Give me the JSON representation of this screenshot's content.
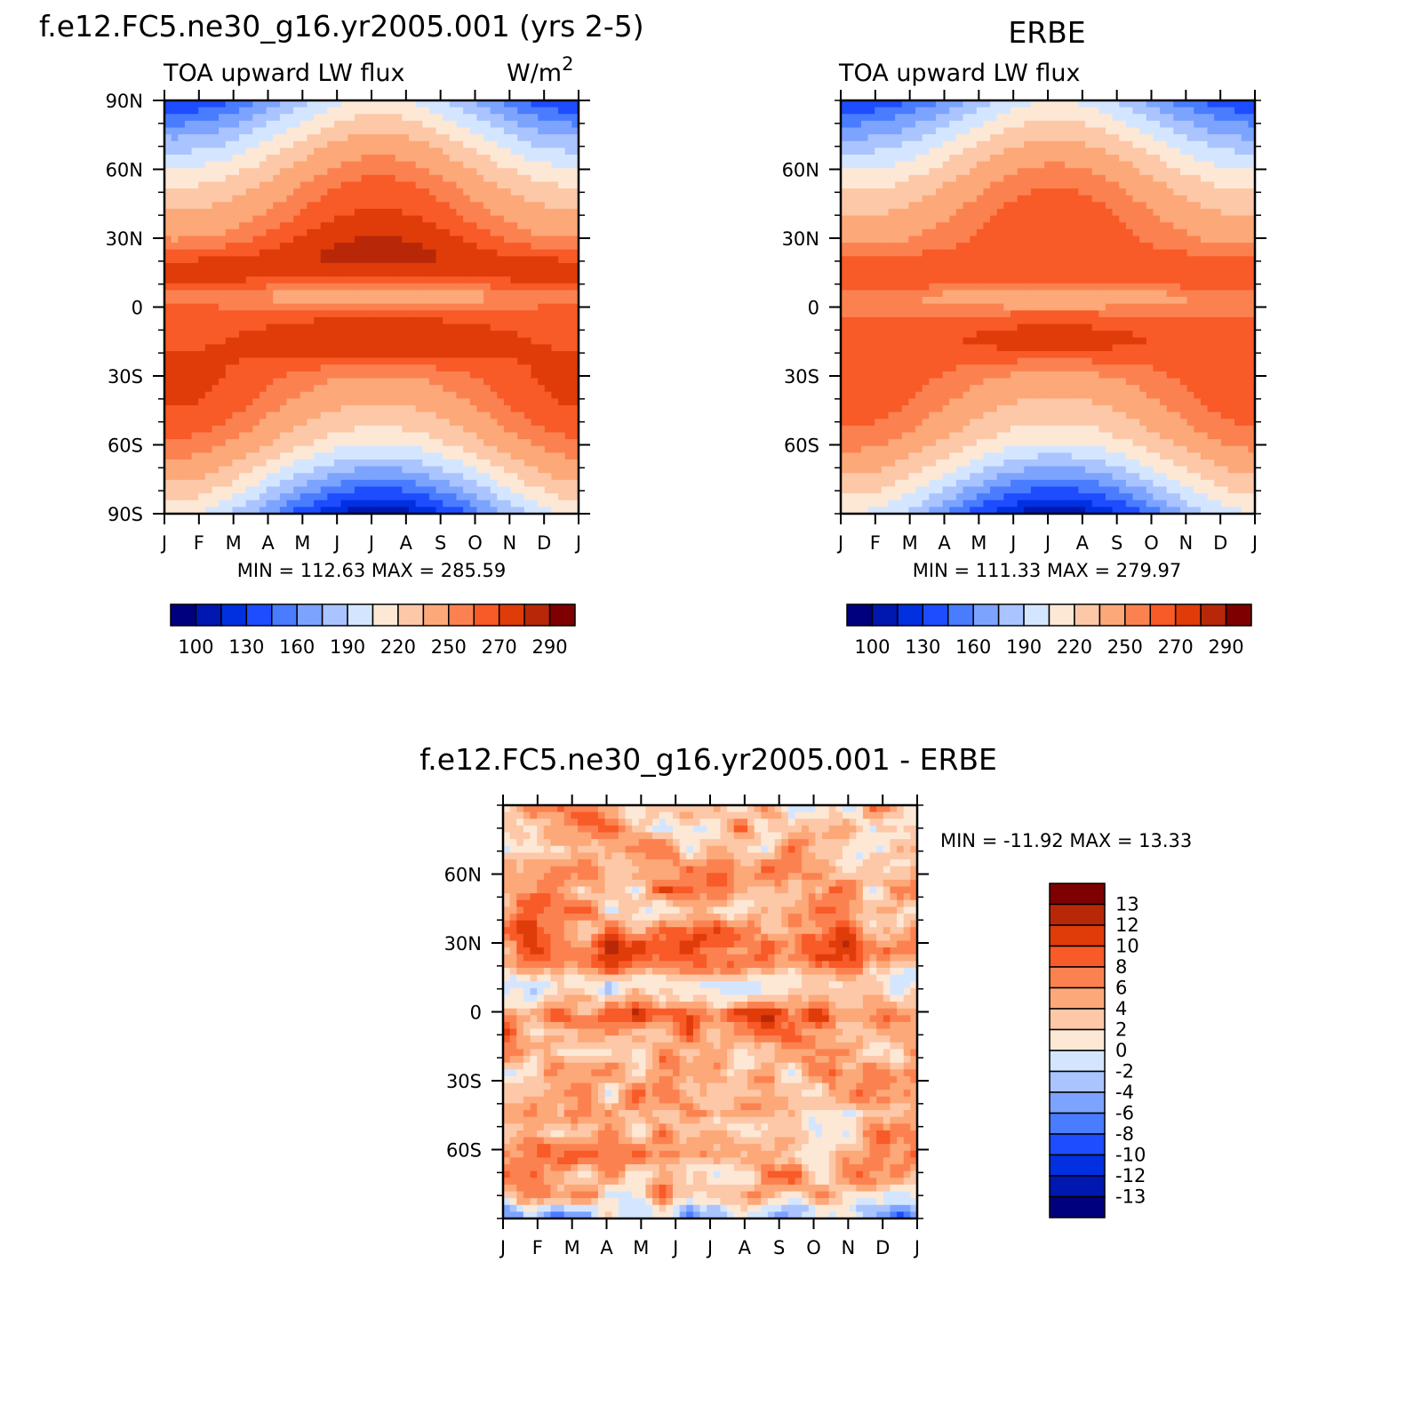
{
  "colors": {
    "abs_levels": [
      "#00007f",
      "#0018b0",
      "#0030e0",
      "#1e4cff",
      "#4a7cff",
      "#7ca4ff",
      "#aac4ff",
      "#d4e6ff",
      "#fde8d6",
      "#fdc8a8",
      "#fca878",
      "#fb8250",
      "#f85a28",
      "#e03c0a",
      "#b82808",
      "#7f0000"
    ],
    "diff_levels": [
      "#00007f",
      "#0018b0",
      "#0030e0",
      "#1e4cff",
      "#4a7cff",
      "#7ca4ff",
      "#aac4ff",
      "#d4e6ff",
      "#fde8d6",
      "#fdc8a8",
      "#fca878",
      "#fb8250",
      "#f85a28",
      "#e03c0a",
      "#b82808",
      "#7f0000"
    ]
  },
  "chart_data": [
    {
      "type": "heatmap",
      "title": "f.e12.FC5.ne30_g16.yr2005.001 (yrs 2-5)",
      "subtitle_left": "TOA upward LW flux",
      "units": "W/m",
      "units_sup": "2",
      "x_tick_labels": [
        "J",
        "F",
        "M",
        "A",
        "M",
        "J",
        "J",
        "A",
        "S",
        "O",
        "N",
        "D",
        "J"
      ],
      "y_tick_labels": [
        "90N",
        "60N",
        "30N",
        "0",
        "30S",
        "60S",
        "90S"
      ],
      "ylim": [
        -90,
        90
      ],
      "stats": "MIN =  112.63  MAX =  285.59",
      "colorbar_labels": [
        "100",
        "130",
        "160",
        "190",
        "220",
        "250",
        "270",
        "290"
      ],
      "levels": [
        100,
        115,
        130,
        145,
        160,
        175,
        190,
        205,
        220,
        235,
        250,
        260,
        270,
        280,
        290
      ],
      "grid": false,
      "colorbar_position": "bottom"
    },
    {
      "type": "heatmap",
      "title": "ERBE",
      "subtitle_left": "TOA upward LW flux",
      "x_tick_labels": [
        "J",
        "F",
        "M",
        "A",
        "M",
        "J",
        "J",
        "A",
        "S",
        "O",
        "N",
        "D",
        "J"
      ],
      "y_tick_labels": [
        "60N",
        "30N",
        "0",
        "30S",
        "60S"
      ],
      "ylim": [
        -90,
        90
      ],
      "stats": "MIN =  111.33  MAX =  279.97",
      "colorbar_labels": [
        "100",
        "130",
        "160",
        "190",
        "220",
        "250",
        "270",
        "290"
      ],
      "levels": [
        100,
        115,
        130,
        145,
        160,
        175,
        190,
        205,
        220,
        235,
        250,
        260,
        270,
        280,
        290
      ],
      "grid": false,
      "colorbar_position": "bottom"
    },
    {
      "type": "heatmap",
      "title": "f.e12.FC5.ne30_g16.yr2005.001 - ERBE",
      "x_tick_labels": [
        "J",
        "F",
        "M",
        "A",
        "M",
        "J",
        "J",
        "A",
        "S",
        "O",
        "N",
        "D",
        "J"
      ],
      "y_tick_labels": [
        "60N",
        "30N",
        "0",
        "30S",
        "60S"
      ],
      "ylim": [
        -90,
        90
      ],
      "stats": "MIN = -11.92  MAX =   13.33",
      "colorbar_labels": [
        "13",
        "12",
        "10",
        "8",
        "6",
        "4",
        "2",
        "0",
        "-2",
        "-4",
        "-6",
        "-8",
        "-10",
        "-12",
        "-13"
      ],
      "levels": [
        -13,
        -12,
        -10,
        -8,
        -6,
        -4,
        -2,
        0,
        2,
        4,
        6,
        8,
        10,
        12,
        13
      ],
      "grid": false,
      "colorbar_position": "right"
    }
  ]
}
